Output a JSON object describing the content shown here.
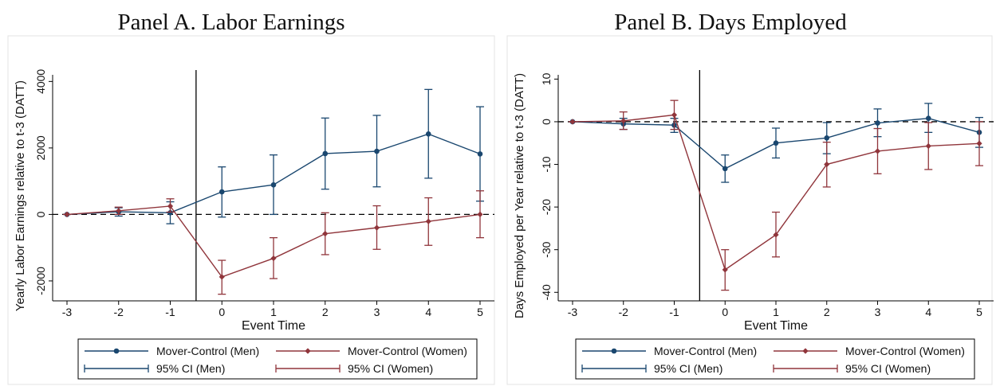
{
  "panels": [
    {
      "title": "Panel A. Labor Earnings"
    },
    {
      "title": "Panel B. Days Employed"
    }
  ],
  "chart_data": [
    {
      "type": "line",
      "title": "Panel A. Labor Earnings",
      "xlabel": "Event Time",
      "ylabel": "Yearly Labor Earnings relative to t-3 (DATT)",
      "x": [
        -3,
        -2,
        -1,
        0,
        1,
        2,
        3,
        4,
        5
      ],
      "xlim": [
        -3,
        5
      ],
      "ylim": [
        -2600,
        4200
      ],
      "yticks": [
        -2000,
        0,
        2000,
        4000
      ],
      "reference_line_y": 0,
      "event_line_x": -0.5,
      "series": [
        {
          "name": "Mover-Control (Men)",
          "color": "#1a476f",
          "values": [
            0,
            80,
            50,
            680,
            890,
            1830,
            1900,
            2420,
            1820
          ],
          "ci_lower": [
            0,
            -50,
            -280,
            -80,
            0,
            760,
            830,
            1090,
            400
          ],
          "ci_upper": [
            0,
            200,
            380,
            1430,
            1790,
            2900,
            2980,
            3760,
            3240
          ]
        },
        {
          "name": "Mover-Control (Women)",
          "color": "#90353b",
          "values": [
            0,
            110,
            250,
            -1880,
            -1320,
            -580,
            -400,
            -210,
            0
          ],
          "ci_lower": [
            0,
            0,
            70,
            -2400,
            -1930,
            -1210,
            -1050,
            -930,
            -700
          ],
          "ci_upper": [
            0,
            220,
            470,
            -1380,
            -700,
            50,
            260,
            500,
            710
          ]
        }
      ],
      "legend": {
        "position": "bottom",
        "entries": [
          "Mover-Control (Men)",
          "Mover-Control (Women)",
          "95% CI (Men)",
          "95% CI (Women)"
        ]
      }
    },
    {
      "type": "line",
      "title": "Panel B. Days Employed",
      "xlabel": "Event Time",
      "ylabel": "Days Employed per Year relative to t-3 (DATT)",
      "x": [
        -3,
        -2,
        -1,
        0,
        1,
        2,
        3,
        4,
        5
      ],
      "xlim": [
        -3,
        5
      ],
      "ylim": [
        -42,
        11
      ],
      "yticks": [
        -40,
        -30,
        -20,
        -10,
        0,
        10
      ],
      "reference_line_y": 0,
      "event_line_x": -0.5,
      "series": [
        {
          "name": "Mover-Control (Men)",
          "color": "#1a476f",
          "values": [
            0,
            -0.5,
            -0.8,
            -11,
            -5,
            -3.8,
            -0.3,
            0.8,
            -2.5
          ],
          "ci_lower": [
            0,
            -1.8,
            -2.5,
            -14.2,
            -8.5,
            -7.5,
            -3.5,
            -2.5,
            -6
          ],
          "ci_upper": [
            0,
            0.8,
            0.8,
            -7.8,
            -1.5,
            -0.2,
            3,
            4.3,
            1
          ]
        },
        {
          "name": "Mover-Control (Women)",
          "color": "#90353b",
          "values": [
            0,
            0.2,
            1.6,
            -34.7,
            -26.5,
            -10,
            -6.9,
            -5.7,
            -5.1
          ],
          "ci_lower": [
            0,
            -1.8,
            -1.8,
            -39.5,
            -31.7,
            -15.3,
            -12.2,
            -11.2,
            -10.3
          ],
          "ci_upper": [
            0,
            2.3,
            5,
            -30,
            -21.2,
            -4.8,
            -1.6,
            -0.2,
            0
          ]
        }
      ],
      "legend": {
        "position": "bottom",
        "entries": [
          "Mover-Control (Men)",
          "Mover-Control (Women)",
          "95% CI (Men)",
          "95% CI (Women)"
        ]
      }
    }
  ]
}
